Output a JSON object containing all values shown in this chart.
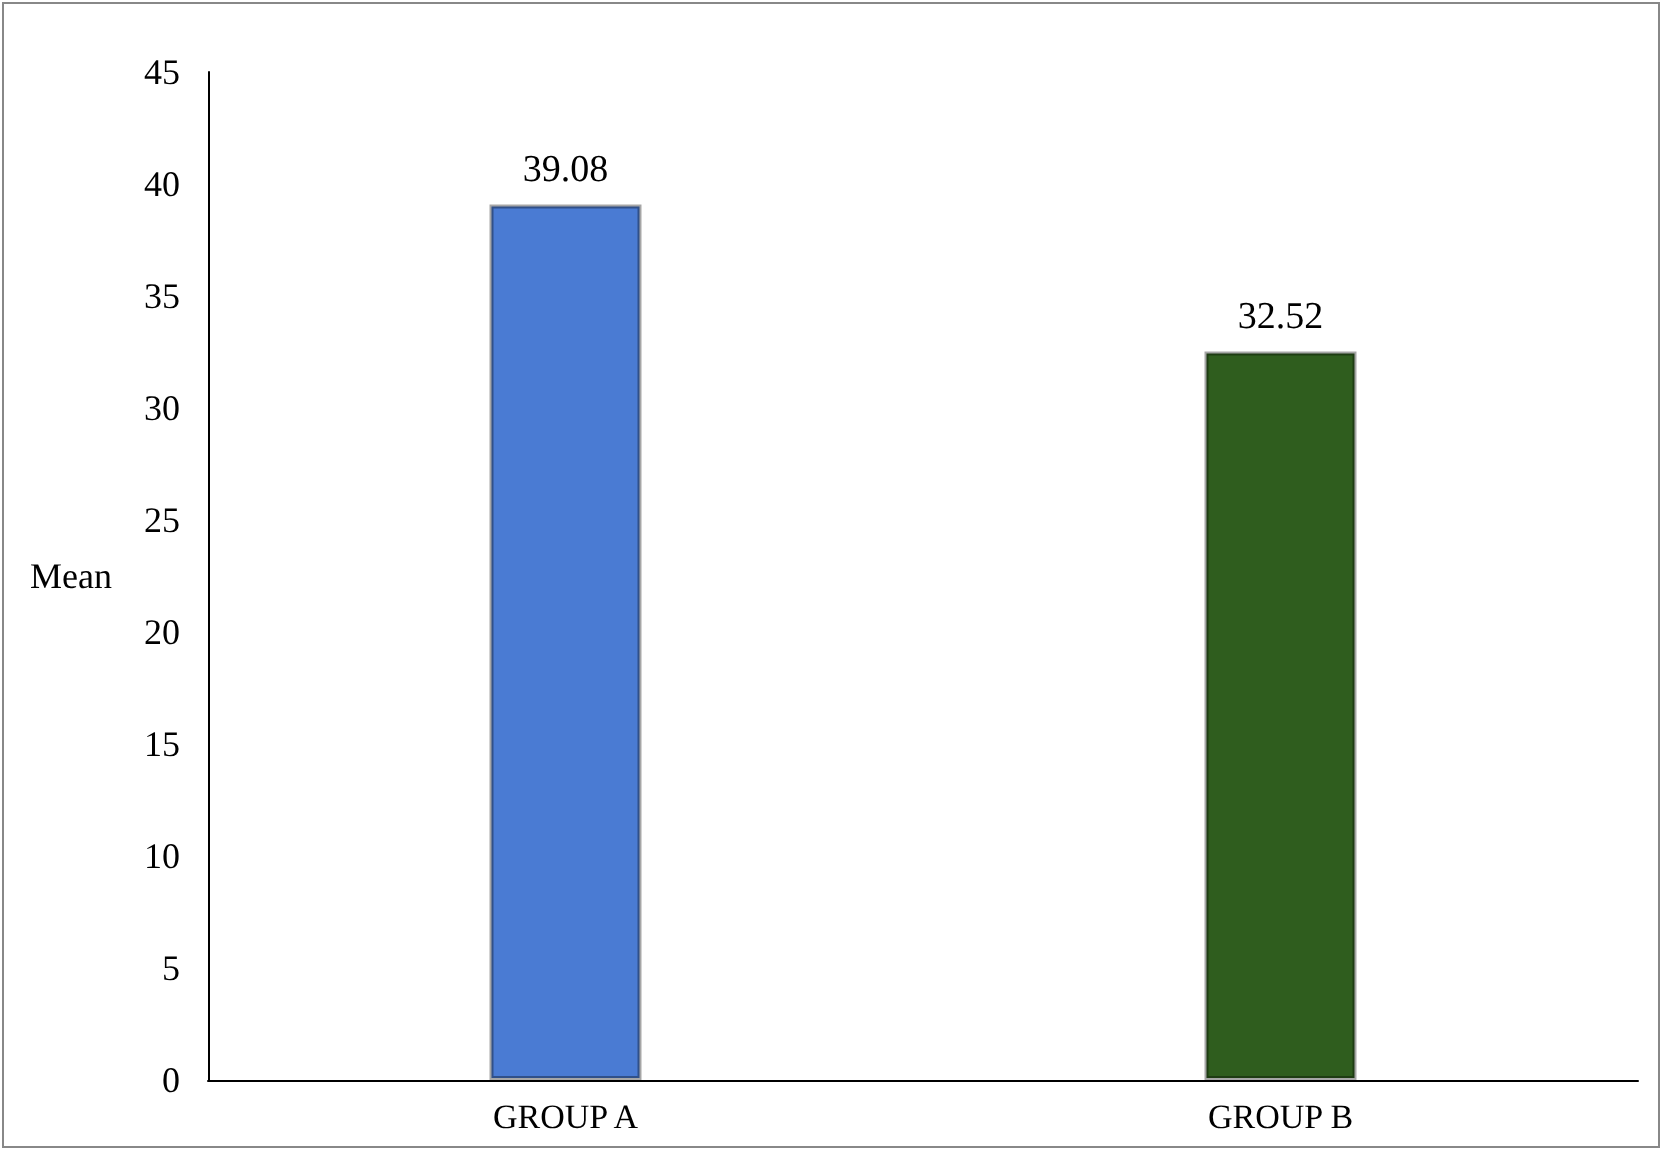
{
  "chart_data": {
    "type": "bar",
    "ylabel": "Mean",
    "categories": [
      "GROUP A",
      "GROUP B"
    ],
    "values": [
      39.08,
      32.52
    ],
    "colors": [
      "#4a7bd3",
      "#2f5d1e"
    ],
    "ylim": [
      0,
      45
    ],
    "yticks": [
      0,
      5,
      10,
      15,
      20,
      25,
      30,
      35,
      40,
      45
    ],
    "grid": false,
    "data_labels": true
  }
}
